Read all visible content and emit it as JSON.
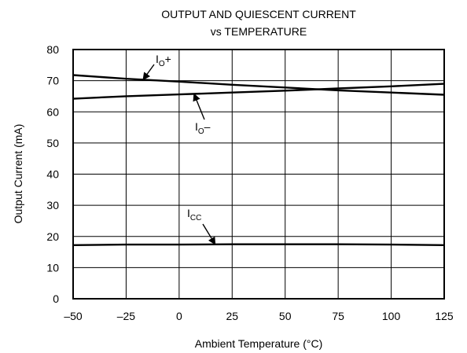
{
  "chart_data": {
    "type": "line",
    "title_lines": [
      "OUTPUT AND QUIESCENT CURRENT",
      "vs TEMPERATURE"
    ],
    "xlabel": "Ambient Temperature (°C)",
    "ylabel": "Output Current (mA)",
    "xlim": [
      -50,
      125
    ],
    "ylim": [
      0,
      80
    ],
    "x_ticks": [
      -50,
      -25,
      0,
      25,
      50,
      75,
      100,
      125
    ],
    "x_tick_labels": [
      "–50",
      "–25",
      "0",
      "25",
      "50",
      "75",
      "100",
      "125"
    ],
    "y_ticks": [
      0,
      10,
      20,
      30,
      40,
      50,
      60,
      70,
      80
    ],
    "y_tick_labels": [
      "0",
      "10",
      "20",
      "30",
      "40",
      "50",
      "60",
      "70",
      "80"
    ],
    "grid": true,
    "legend": "none",
    "series": [
      {
        "key": "io_plus",
        "label_main": "I",
        "label_sub": "O",
        "label_suffix": "+",
        "x": [
          -50,
          -25,
          0,
          25,
          50,
          75,
          100,
          125
        ],
        "y": [
          71.8,
          70.6,
          69.7,
          68.7,
          67.8,
          66.9,
          66.2,
          65.5
        ]
      },
      {
        "key": "io_minus",
        "label_main": "I",
        "label_sub": "O",
        "label_suffix": "–",
        "x": [
          -50,
          -25,
          0,
          25,
          50,
          75,
          100,
          125
        ],
        "y": [
          64.2,
          65.0,
          65.6,
          66.2,
          66.8,
          67.5,
          68.2,
          69.0
        ]
      },
      {
        "key": "icc",
        "label_main": "I",
        "label_sub": "CC",
        "label_suffix": "",
        "x": [
          -50,
          -25,
          0,
          25,
          50,
          75,
          100,
          125
        ],
        "y": [
          17.2,
          17.4,
          17.4,
          17.5,
          17.5,
          17.5,
          17.4,
          17.2
        ]
      }
    ]
  }
}
